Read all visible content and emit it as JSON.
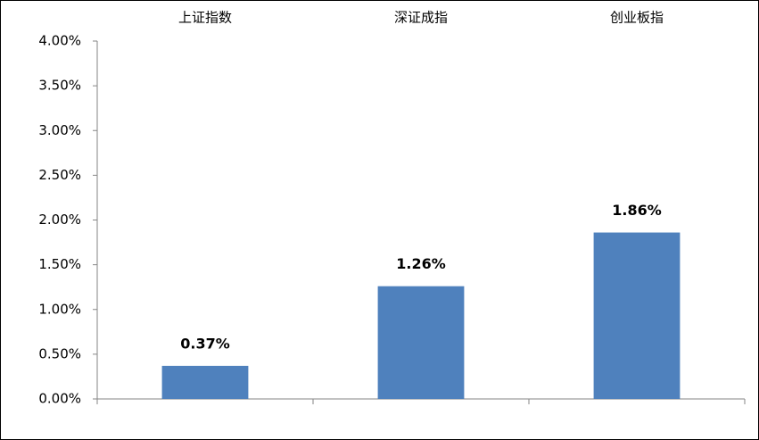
{
  "chart_data": {
    "type": "bar",
    "categories": [
      "上证指数",
      "深证成指",
      "创业板指"
    ],
    "values": [
      0.37,
      1.26,
      1.86
    ],
    "value_labels": [
      "0.37%",
      "1.26%",
      "1.86%"
    ],
    "color": "#4f81bd",
    "ylim": [
      0,
      4
    ],
    "yticks": [
      {
        "value": 0,
        "label": "0.00%"
      },
      {
        "value": 0.5,
        "label": "0.50%"
      },
      {
        "value": 1,
        "label": "1.00%"
      },
      {
        "value": 1.5,
        "label": "1.50%"
      },
      {
        "value": 2,
        "label": "2.00%"
      },
      {
        "value": 2.5,
        "label": "2.50%"
      },
      {
        "value": 3,
        "label": "3.00%"
      },
      {
        "value": 3.5,
        "label": "3.50%"
      },
      {
        "value": 4,
        "label": "4.00%"
      }
    ],
    "grid": false
  }
}
